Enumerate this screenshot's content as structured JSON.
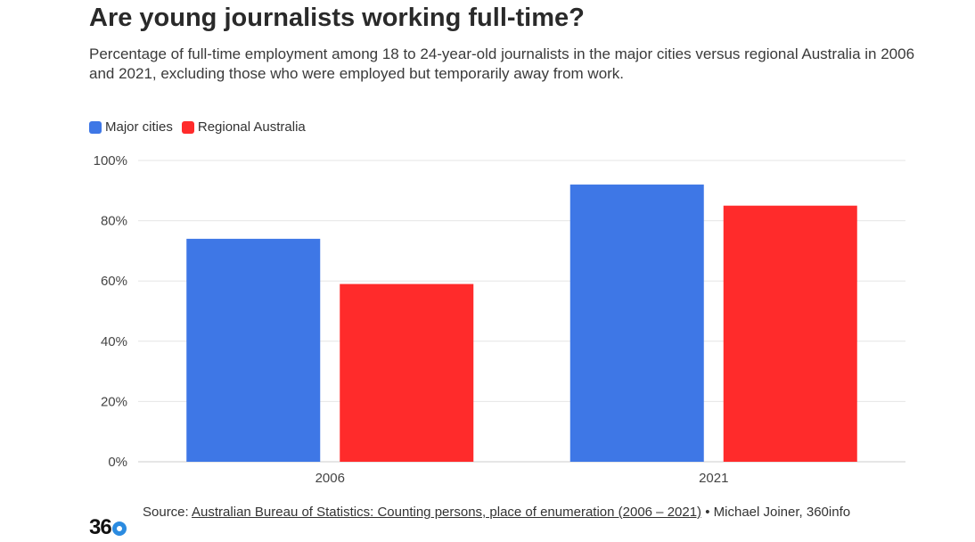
{
  "colors": {
    "major_cities": "#3e77e6",
    "regional": "#ff2b2b",
    "grid": "#e6e6e6",
    "axis_text": "#444444"
  },
  "footer": {
    "source_prefix": "Source:",
    "source_link": "Australian Bureau of Statistics: Counting persons, place of enumeration (2006 – 2021)",
    "credit": "• Michael Joiner, 360info"
  },
  "logo": {
    "text": "36"
  },
  "chart_data": {
    "type": "bar",
    "title": "Are young journalists working full-time?",
    "subtitle": "Percentage of full-time employment among 18 to 24-year-old journalists in the major cities versus regional Australia in 2006 and 2021, excluding those who were employed but temporarily away from work.",
    "categories": [
      "2006",
      "2021"
    ],
    "series": [
      {
        "name": "Major cities",
        "values": [
          74,
          92
        ]
      },
      {
        "name": "Regional Australia",
        "values": [
          59,
          85
        ]
      }
    ],
    "ylim": [
      0,
      100
    ],
    "yticks": [
      "0%",
      "20%",
      "40%",
      "60%",
      "80%",
      "100%"
    ],
    "grid": true,
    "legend": "top-left"
  }
}
